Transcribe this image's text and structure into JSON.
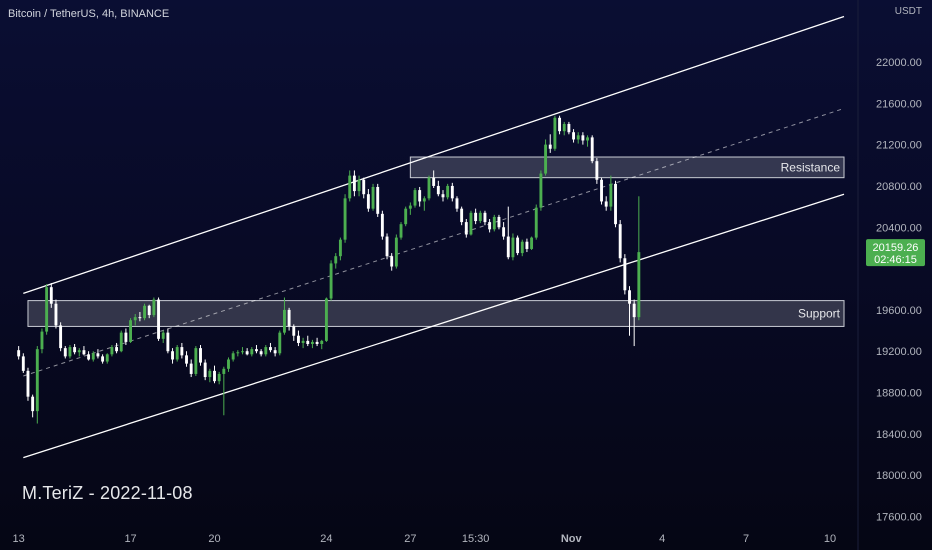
{
  "header": {
    "symbol": "Bitcoin / TetherUS, 4h, BINANCE"
  },
  "watermark": "M.TeriZ - 2022-11-08",
  "price_axis": {
    "currency": "USDT",
    "ticks": [
      22000,
      21600,
      21200,
      20800,
      20400,
      19600,
      19200,
      18800,
      18400,
      18000,
      17600
    ],
    "tick_labels": [
      "22000.00",
      "21600.00",
      "21200.00",
      "20800.00",
      "20400.00",
      "19600.00",
      "19200.00",
      "18800.00",
      "18400.00",
      "18000.00",
      "17600.00"
    ],
    "range": [
      17450,
      22600
    ]
  },
  "time_axis": {
    "labels": [
      {
        "label": "13",
        "t": 0
      },
      {
        "label": "17",
        "t": 24
      },
      {
        "label": "20",
        "t": 42
      },
      {
        "label": "24",
        "t": 66
      },
      {
        "label": "27",
        "t": 84
      },
      {
        "label": "15:30",
        "t": 98
      },
      {
        "label": "Nov",
        "t": 118.5
      },
      {
        "label": "4",
        "t": 138
      },
      {
        "label": "7",
        "t": 156
      },
      {
        "label": "10",
        "t": 174
      }
    ],
    "range": [
      -4,
      180
    ]
  },
  "last_price": {
    "price": "20159.26",
    "countdown": "02:46:15",
    "value": 20159.26
  },
  "zones": [
    {
      "label": "Resistance",
      "from": 20880,
      "to": 21080,
      "t_start": 84,
      "t_end": 177
    },
    {
      "label": "Support",
      "from": 19440,
      "to": 19690,
      "t_start": 2,
      "t_end": 177
    }
  ],
  "channel": {
    "upper": {
      "t0": 1,
      "p0": 19760,
      "t1": 177,
      "p1": 22440
    },
    "lower": {
      "t0": 1,
      "p0": 18170,
      "t1": 177,
      "p1": 20720
    },
    "mid": {
      "t0": 1,
      "p0": 18960,
      "t1": 177,
      "p1": 21550
    }
  },
  "colors": {
    "up": "#4caf50",
    "down": "#ffffff",
    "accent": "#4caf50",
    "zone": "#b2b5be"
  },
  "chart_data": {
    "type": "candlestick",
    "title": "Bitcoin / TetherUS, 4h, BINANCE",
    "xlabel": "",
    "ylabel": "USDT",
    "ylim": [
      17450,
      22600
    ],
    "candles": [
      [
        19210,
        19250,
        19120,
        19150
      ],
      [
        19150,
        19180,
        18990,
        19010
      ],
      [
        19010,
        19040,
        18720,
        18760
      ],
      [
        18760,
        18780,
        18560,
        18620
      ],
      [
        18620,
        19250,
        18500,
        19220
      ],
      [
        19220,
        19420,
        19180,
        19390
      ],
      [
        19390,
        19850,
        19360,
        19820
      ],
      [
        19820,
        19860,
        19620,
        19660
      ],
      [
        19660,
        19700,
        19420,
        19450
      ],
      [
        19450,
        19480,
        19200,
        19230
      ],
      [
        19230,
        19250,
        19130,
        19150
      ],
      [
        19150,
        19260,
        19130,
        19240
      ],
      [
        19240,
        19270,
        19170,
        19190
      ],
      [
        19190,
        19230,
        19150,
        19210
      ],
      [
        19210,
        19250,
        19160,
        19170
      ],
      [
        19170,
        19200,
        19110,
        19120
      ],
      [
        19120,
        19200,
        19100,
        19180
      ],
      [
        19180,
        19220,
        19130,
        19150
      ],
      [
        19150,
        19170,
        19080,
        19100
      ],
      [
        19100,
        19180,
        19080,
        19170
      ],
      [
        19170,
        19260,
        19150,
        19240
      ],
      [
        19240,
        19280,
        19180,
        19200
      ],
      [
        19200,
        19400,
        19190,
        19380
      ],
      [
        19380,
        19420,
        19260,
        19290
      ],
      [
        19290,
        19520,
        19280,
        19500
      ],
      [
        19500,
        19560,
        19450,
        19530
      ],
      [
        19530,
        19580,
        19490,
        19520
      ],
      [
        19520,
        19660,
        19500,
        19640
      ],
      [
        19640,
        19650,
        19520,
        19550
      ],
      [
        19550,
        19720,
        19530,
        19700
      ],
      [
        19700,
        19720,
        19300,
        19320
      ],
      [
        19320,
        19400,
        19280,
        19380
      ],
      [
        19380,
        19420,
        19180,
        19200
      ],
      [
        19200,
        19230,
        19080,
        19120
      ],
      [
        19120,
        19260,
        19100,
        19240
      ],
      [
        19240,
        19280,
        19130,
        19160
      ],
      [
        19160,
        19200,
        19050,
        19080
      ],
      [
        19080,
        19120,
        18950,
        18980
      ],
      [
        18980,
        19250,
        18960,
        19230
      ],
      [
        19230,
        19260,
        19060,
        19090
      ],
      [
        19090,
        19120,
        18920,
        18950
      ],
      [
        18950,
        19030,
        18900,
        19010
      ],
      [
        19010,
        19060,
        18890,
        18910
      ],
      [
        18910,
        19000,
        18880,
        18980
      ],
      [
        18980,
        19050,
        18580,
        19030
      ],
      [
        19030,
        19140,
        19000,
        19120
      ],
      [
        19120,
        19200,
        19100,
        19180
      ],
      [
        19180,
        19210,
        19150,
        19190
      ],
      [
        19190,
        19240,
        19170,
        19200
      ],
      [
        19200,
        19230,
        19160,
        19170
      ],
      [
        19170,
        19240,
        19150,
        19220
      ],
      [
        19220,
        19260,
        19180,
        19200
      ],
      [
        19200,
        19220,
        19150,
        19170
      ],
      [
        19170,
        19260,
        19150,
        19240
      ],
      [
        19240,
        19280,
        19190,
        19210
      ],
      [
        19210,
        19240,
        19150,
        19180
      ],
      [
        19180,
        19400,
        19160,
        19380
      ],
      [
        19380,
        19720,
        19360,
        19600
      ],
      [
        19600,
        19620,
        19400,
        19440
      ],
      [
        19440,
        19460,
        19300,
        19350
      ],
      [
        19350,
        19400,
        19250,
        19280
      ],
      [
        19280,
        19330,
        19230,
        19300
      ],
      [
        19300,
        19350,
        19250,
        19270
      ],
      [
        19270,
        19310,
        19230,
        19290
      ],
      [
        19290,
        19330,
        19250,
        19270
      ],
      [
        19270,
        19310,
        19220,
        19300
      ],
      [
        19300,
        19720,
        19290,
        19710
      ],
      [
        19710,
        20080,
        19690,
        20050
      ],
      [
        20050,
        20150,
        20000,
        20120
      ],
      [
        20120,
        20300,
        20080,
        20280
      ],
      [
        20280,
        20720,
        20250,
        20680
      ],
      [
        20680,
        20950,
        20650,
        20900
      ],
      [
        20900,
        20950,
        20700,
        20750
      ],
      [
        20750,
        20900,
        20700,
        20860
      ],
      [
        20860,
        20880,
        20680,
        20720
      ],
      [
        20720,
        20770,
        20550,
        20580
      ],
      [
        20580,
        20820,
        20560,
        20790
      ],
      [
        20790,
        20820,
        20500,
        20530
      ],
      [
        20530,
        20560,
        20280,
        20310
      ],
      [
        20310,
        20340,
        20090,
        20120
      ],
      [
        20120,
        20150,
        19980,
        20020
      ],
      [
        20020,
        20330,
        20000,
        20300
      ],
      [
        20300,
        20450,
        20280,
        20430
      ],
      [
        20430,
        20600,
        20410,
        20580
      ],
      [
        20580,
        20640,
        20520,
        20610
      ],
      [
        20610,
        20780,
        20590,
        20760
      ],
      [
        20760,
        20790,
        20600,
        20650
      ],
      [
        20650,
        20700,
        20560,
        20680
      ],
      [
        20680,
        20900,
        20660,
        20880
      ],
      [
        20880,
        20950,
        20780,
        20800
      ],
      [
        20800,
        20850,
        20700,
        20720
      ],
      [
        20720,
        20760,
        20650,
        20690
      ],
      [
        20690,
        20820,
        20670,
        20800
      ],
      [
        20800,
        20830,
        20650,
        20680
      ],
      [
        20680,
        20700,
        20550,
        20580
      ],
      [
        20580,
        20600,
        20420,
        20450
      ],
      [
        20450,
        20480,
        20300,
        20330
      ],
      [
        20330,
        20560,
        20320,
        20540
      ],
      [
        20540,
        20580,
        20430,
        20460
      ],
      [
        20460,
        20560,
        20440,
        20540
      ],
      [
        20540,
        20560,
        20420,
        20450
      ],
      [
        20450,
        20480,
        20350,
        20380
      ],
      [
        20380,
        20520,
        20360,
        20500
      ],
      [
        20500,
        20520,
        20380,
        20400
      ],
      [
        20400,
        20450,
        20280,
        20310
      ],
      [
        20310,
        20600,
        20090,
        20110
      ],
      [
        20110,
        20340,
        20080,
        20300
      ],
      [
        20300,
        20320,
        20130,
        20150
      ],
      [
        20150,
        20280,
        20120,
        20260
      ],
      [
        20260,
        20290,
        20160,
        20190
      ],
      [
        20190,
        20310,
        20180,
        20300
      ],
      [
        20300,
        20620,
        20280,
        20590
      ],
      [
        20590,
        20950,
        20560,
        20920
      ],
      [
        20920,
        21250,
        20900,
        21200
      ],
      [
        21200,
        21300,
        21120,
        21160
      ],
      [
        21160,
        21480,
        21140,
        21460
      ],
      [
        21460,
        21480,
        21300,
        21330
      ],
      [
        21330,
        21420,
        21290,
        21400
      ],
      [
        21400,
        21420,
        21300,
        21320
      ],
      [
        21320,
        21350,
        21220,
        21250
      ],
      [
        21250,
        21320,
        21210,
        21290
      ],
      [
        21290,
        21320,
        21200,
        21240
      ],
      [
        21240,
        21290,
        21180,
        21270
      ],
      [
        21270,
        21290,
        21020,
        21040
      ],
      [
        21040,
        21070,
        20820,
        20860
      ],
      [
        20860,
        20880,
        20620,
        20650
      ],
      [
        20650,
        20700,
        20560,
        20600
      ],
      [
        20600,
        20900,
        20560,
        20820
      ],
      [
        20820,
        20850,
        20400,
        20430
      ],
      [
        20430,
        20470,
        20060,
        20100
      ],
      [
        20100,
        20140,
        19750,
        19790
      ],
      [
        19790,
        19830,
        19350,
        19660
      ],
      [
        19660,
        19700,
        19250,
        19530
      ],
      [
        19530,
        20700,
        19500,
        20159.26
      ]
    ]
  }
}
